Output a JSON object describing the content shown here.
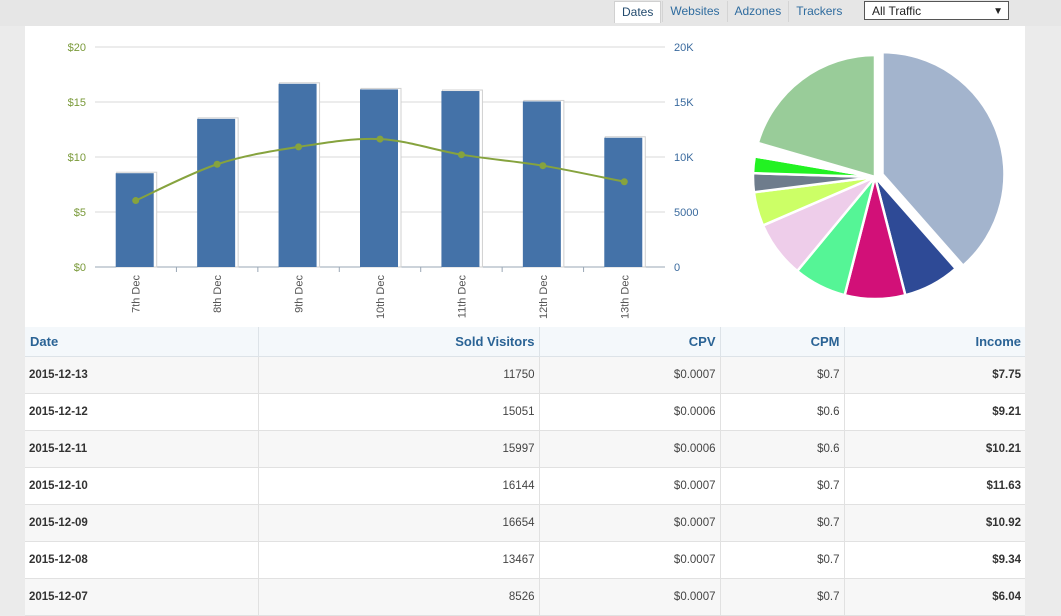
{
  "toolbar": {
    "tabs": [
      "Dates",
      "Websites",
      "Adzones",
      "Trackers"
    ],
    "active_tab": "Dates",
    "traffic_select": "All Traffic"
  },
  "chart_data": [
    {
      "type": "bar",
      "categories": [
        "7th Dec",
        "8th Dec",
        "9th Dec",
        "10th Dec",
        "11th Dec",
        "12th Dec",
        "13th Dec"
      ],
      "series": [
        {
          "values": [
            8526,
            13467,
            16654,
            16144,
            15997,
            15051,
            11750
          ],
          "axis": "right",
          "render": "bar",
          "color": "#4472a8"
        },
        {
          "values": [
            6.04,
            9.34,
            10.92,
            11.63,
            10.21,
            9.21,
            7.75
          ],
          "axis": "left",
          "render": "line",
          "color": "#86a33e"
        }
      ],
      "y_left": {
        "ticks": [
          "$0",
          "$5",
          "$10",
          "$15",
          "$20"
        ],
        "ylim": [
          0,
          20
        ],
        "color": "#7a9a3a"
      },
      "y_right": {
        "ticks": [
          "0",
          "5000",
          "10K",
          "15K",
          "20K"
        ],
        "ylim": [
          0,
          20000
        ],
        "color": "#3a6a9e"
      },
      "grid": true
    },
    {
      "type": "pie",
      "values": [
        38.5,
        7.5,
        8,
        7,
        7.5,
        4.5,
        2.5,
        2.2,
        1.8,
        20.5
      ],
      "colors": [
        "#a3b4cd",
        "#2e4a96",
        "#d21078",
        "#55f596",
        "#eecdea",
        "#ccff66",
        "#6e7c8c",
        "#22f222",
        "#ffffff",
        "#99cc99"
      ],
      "exploded_index": 0
    }
  ],
  "table": {
    "headers": [
      "Date",
      "Sold Visitors",
      "CPV",
      "CPM",
      "Income"
    ],
    "rows": [
      [
        "2015-12-13",
        "11750",
        "$0.0007",
        "$0.7",
        "$7.75"
      ],
      [
        "2015-12-12",
        "15051",
        "$0.0006",
        "$0.6",
        "$9.21"
      ],
      [
        "2015-12-11",
        "15997",
        "$0.0006",
        "$0.6",
        "$10.21"
      ],
      [
        "2015-12-10",
        "16144",
        "$0.0007",
        "$0.7",
        "$11.63"
      ],
      [
        "2015-12-09",
        "16654",
        "$0.0007",
        "$0.7",
        "$10.92"
      ],
      [
        "2015-12-08",
        "13467",
        "$0.0007",
        "$0.7",
        "$9.34"
      ],
      [
        "2015-12-07",
        "8526",
        "$0.0007",
        "$0.7",
        "$6.04"
      ]
    ]
  }
}
